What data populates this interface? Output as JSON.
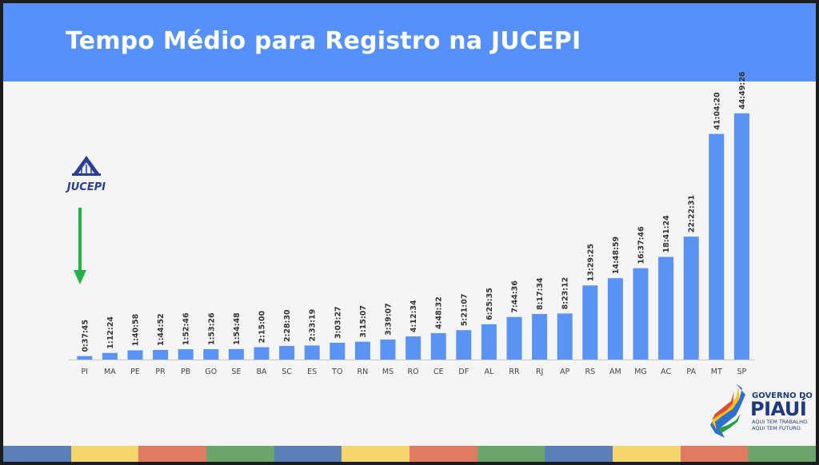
{
  "header": {
    "title": "Tempo Médio para Registro na JUCEPI"
  },
  "logos": {
    "jucepi": "JUCEPI",
    "gov_line1": "GOVERNO DO",
    "gov_line2": "PIAUÍ",
    "gov_line3": "AQUI TEM TRABALHO.",
    "gov_line4": "AQUI TEM FUTURO."
  },
  "colors": {
    "header": "#5590fb",
    "bar": "#5b93f5",
    "highlight_arrow": "#22b24c",
    "stripe": [
      "#5b7fb8",
      "#f4d66b",
      "#e07a63",
      "#6aa66c",
      "#5b7fb8",
      "#f4d66b",
      "#e07a63",
      "#6aa66c",
      "#5b7fb8",
      "#f4d66b",
      "#e07a63",
      "#6aa66c"
    ]
  },
  "icons": {
    "arrow": "arrow-down-icon"
  },
  "chart_data": {
    "type": "bar",
    "title": "Tempo Médio para Registro na JUCEPI",
    "xlabel": "",
    "ylabel": "",
    "ylim": [
      0,
      48
    ],
    "grid": false,
    "categories": [
      "PI",
      "MA",
      "PE",
      "PR",
      "PB",
      "GO",
      "SE",
      "BA",
      "SC",
      "ES",
      "TO",
      "RN",
      "MS",
      "RO",
      "CE",
      "DF",
      "AL",
      "RR",
      "RJ",
      "AP",
      "RS",
      "AM",
      "MG",
      "AC",
      "PA",
      "MT",
      "SP"
    ],
    "value_units": "hours",
    "values": [
      0.6292,
      1.2067,
      1.6828,
      1.7478,
      1.8794,
      1.8906,
      1.9133,
      2.25,
      2.475,
      2.5553,
      3.0575,
      3.2519,
      3.6519,
      4.2094,
      4.8089,
      5.3519,
      6.4264,
      7.7433,
      8.2928,
      8.3867,
      13.4903,
      14.8164,
      16.6294,
      18.69,
      22.3753,
      41.0722,
      44.8239
    ],
    "data_labels": [
      "0:37:45",
      "1:12:24",
      "1:40:58",
      "1:44:52",
      "1:52:46",
      "1:53:26",
      "1:54:48",
      "2:15:00",
      "2:28:30",
      "2:33:19",
      "3:03:27",
      "3:15:07",
      "3:39:07",
      "4:12:34",
      "4:48:32",
      "5:21:07",
      "6:25:35",
      "7:44:36",
      "8:17:34",
      "8:23:12",
      "13:29:25",
      "14:48:59",
      "16:37:46",
      "18:41:24",
      "22:22:31",
      "41:04:20",
      "44:49:26"
    ]
  }
}
